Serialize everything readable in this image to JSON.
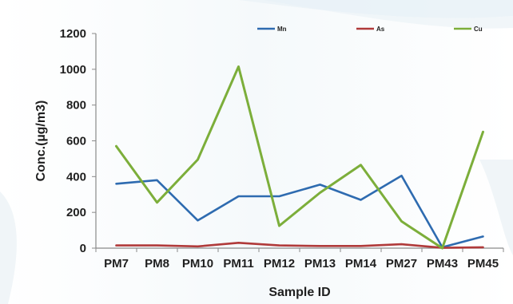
{
  "chart_data": {
    "type": "line",
    "categories": [
      "PM7",
      "PM8",
      "PM10",
      "PM11",
      "PM12",
      "PM13",
      "PM14",
      "PM27",
      "PM43",
      "PM45"
    ],
    "series": [
      {
        "name": "Mn",
        "color": "#2e6bb0",
        "values": [
          360,
          380,
          155,
          290,
          290,
          355,
          270,
          405,
          5,
          65
        ]
      },
      {
        "name": "As",
        "color": "#b03a3a",
        "values": [
          15,
          15,
          10,
          30,
          15,
          12,
          12,
          22,
          2,
          5
        ]
      },
      {
        "name": "Cu",
        "color": "#7cae3a",
        "values": [
          570,
          255,
          495,
          1015,
          125,
          310,
          465,
          150,
          0,
          650
        ]
      }
    ],
    "xlabel": "Sample ID",
    "ylabel": "Conc.(µg/m3)",
    "ylim": [
      0,
      1200
    ],
    "yticks": [
      0,
      200,
      400,
      600,
      800,
      1000,
      1200
    ],
    "grid": false,
    "legend": "top"
  }
}
